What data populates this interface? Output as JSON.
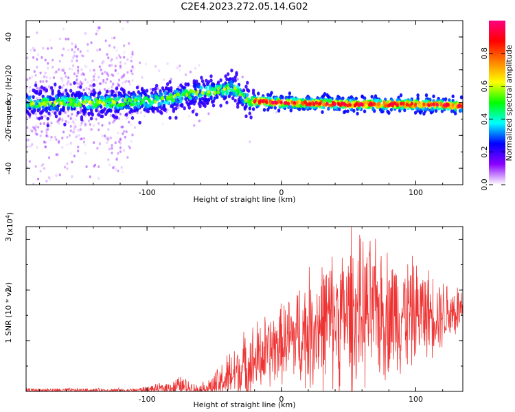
{
  "title": "C2E4.2023.272.05.14.G02",
  "chart_data": [
    {
      "type": "heatmap",
      "xlabel": "Height of straight line (km)",
      "ylabel": "Frequency (Hz)",
      "xlim": [
        -190,
        135
      ],
      "ylim": [
        -50,
        50
      ],
      "x_ticks": [
        -100,
        0,
        100
      ],
      "y_ticks": [
        -40,
        -20,
        0,
        20,
        40
      ],
      "colorbar": {
        "label": "Normalized spectral amplitude",
        "range": [
          0,
          1
        ],
        "ticks": [
          "0.0",
          "0.2",
          "0.4",
          "0.6",
          "0.8"
        ],
        "tick_values": [
          0.0,
          0.2,
          0.4,
          0.6,
          0.8
        ],
        "colors": [
          "#ffffff",
          "#8a00ff",
          "#0000ff",
          "#00ffff",
          "#00ff00",
          "#ffff00",
          "#ff8000",
          "#ff0000",
          "#ff0080"
        ]
      },
      "ridge": [
        {
          "x": -190,
          "f": 0
        },
        {
          "x": -150,
          "f": 0
        },
        {
          "x": -120,
          "f": 0
        },
        {
          "x": -100,
          "f": 1
        },
        {
          "x": -80,
          "f": 3
        },
        {
          "x": -65,
          "f": 6
        },
        {
          "x": -50,
          "f": 7
        },
        {
          "x": -35,
          "f": 9
        },
        {
          "x": -25,
          "f": 1
        },
        {
          "x": 0,
          "f": 0
        },
        {
          "x": 50,
          "f": -1
        },
        {
          "x": 100,
          "f": -1
        },
        {
          "x": 135,
          "f": -2
        }
      ]
    },
    {
      "type": "line",
      "xlabel": "Height of straight line (km)",
      "ylabel": "SNR (10 * v/v)",
      "y_multiplier_label": "(x10",
      "y_multiplier_exp": "4",
      "y_multiplier_close": ")",
      "xlim": [
        -190,
        135
      ],
      "ylim": [
        0,
        3.25
      ],
      "x_ticks": [
        -100,
        0,
        100
      ],
      "y_ticks": [
        1,
        2,
        3
      ],
      "line_color": "#ee3333",
      "envelope": [
        {
          "x": -190,
          "base": 0.02,
          "amp": 0.05
        },
        {
          "x": -110,
          "base": 0.02,
          "amp": 0.05
        },
        {
          "x": -90,
          "base": 0.05,
          "amp": 0.12
        },
        {
          "x": -75,
          "base": 0.1,
          "amp": 0.25
        },
        {
          "x": -62,
          "base": 0.04,
          "amp": 0.1
        },
        {
          "x": -50,
          "base": 0.1,
          "amp": 0.3
        },
        {
          "x": -35,
          "base": 0.35,
          "amp": 0.7
        },
        {
          "x": -20,
          "base": 0.6,
          "amp": 0.9
        },
        {
          "x": 0,
          "base": 0.95,
          "amp": 0.9
        },
        {
          "x": 20,
          "base": 1.2,
          "amp": 1.4
        },
        {
          "x": 40,
          "base": 1.45,
          "amp": 1.6
        },
        {
          "x": 60,
          "base": 1.55,
          "amp": 1.7
        },
        {
          "x": 90,
          "base": 1.55,
          "amp": 1.4
        },
        {
          "x": 110,
          "base": 1.55,
          "amp": 1.0
        },
        {
          "x": 135,
          "base": 1.6,
          "amp": 0.6
        }
      ],
      "peak": {
        "x": 52,
        "y": 3.25
      }
    }
  ]
}
